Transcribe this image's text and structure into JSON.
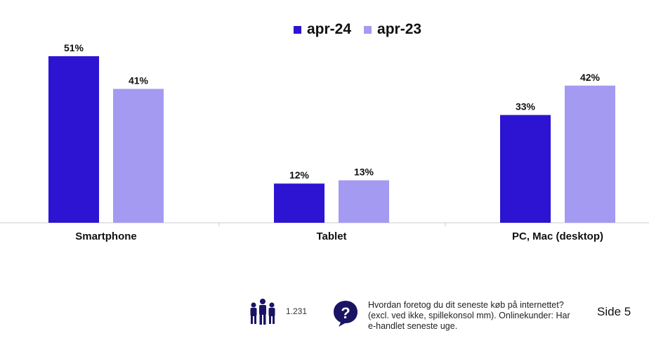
{
  "colors": {
    "apr24": "#2c14d2",
    "apr23": "#a49af1",
    "axis": "#cccccc",
    "icon": "#1a1464"
  },
  "legend": [
    {
      "label": "apr-24",
      "color": "#2c14d2"
    },
    {
      "label": "apr-23",
      "color": "#a49af1"
    }
  ],
  "chart_data": {
    "type": "bar",
    "categories": [
      "Smartphone",
      "Tablet",
      "PC, Mac (desktop)"
    ],
    "series": [
      {
        "name": "apr-24",
        "values": [
          51,
          12,
          33
        ],
        "labels": [
          "51%",
          "12%",
          "33%"
        ]
      },
      {
        "name": "apr-23",
        "values": [
          41,
          13,
          42
        ],
        "labels": [
          "41%",
          "13%",
          "42%"
        ]
      }
    ],
    "ylim": [
      0,
      51
    ],
    "legend_position": "top-center",
    "grid": false
  },
  "footer": {
    "sample_size": "1.231",
    "question": "Hvordan foretog du dit seneste køb på internettet? (excl. ved ikke, spillekonsol mm). Onlinekunder: Har e-handlet seneste uge.",
    "page": "Side 5",
    "people_icon": "people-group-icon",
    "question_icon": "speech-question-icon"
  }
}
